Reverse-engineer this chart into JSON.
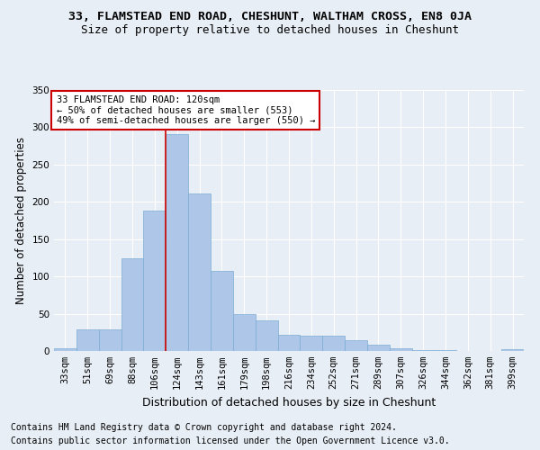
{
  "title1": "33, FLAMSTEAD END ROAD, CHESHUNT, WALTHAM CROSS, EN8 0JA",
  "title2": "Size of property relative to detached houses in Cheshunt",
  "xlabel": "Distribution of detached houses by size in Cheshunt",
  "ylabel": "Number of detached properties",
  "footer1": "Contains HM Land Registry data © Crown copyright and database right 2024.",
  "footer2": "Contains public sector information licensed under the Open Government Licence v3.0.",
  "bar_labels": [
    "33sqm",
    "51sqm",
    "69sqm",
    "88sqm",
    "106sqm",
    "124sqm",
    "143sqm",
    "161sqm",
    "179sqm",
    "198sqm",
    "216sqm",
    "234sqm",
    "252sqm",
    "271sqm",
    "289sqm",
    "307sqm",
    "326sqm",
    "344sqm",
    "362sqm",
    "381sqm",
    "399sqm"
  ],
  "bar_values": [
    4,
    29,
    29,
    124,
    188,
    291,
    211,
    107,
    50,
    41,
    22,
    20,
    20,
    14,
    9,
    4,
    1,
    1,
    0,
    0,
    3
  ],
  "bar_color": "#aec6e8",
  "bar_edge_color": "#7badd4",
  "vline_x": 4.5,
  "vline_color": "#cc0000",
  "annotation_text": "33 FLAMSTEAD END ROAD: 120sqm\n← 50% of detached houses are smaller (553)\n49% of semi-detached houses are larger (550) →",
  "box_color": "#ffffff",
  "box_edge_color": "#cc0000",
  "ylim": [
    0,
    350
  ],
  "yticks": [
    0,
    50,
    100,
    150,
    200,
    250,
    300,
    350
  ],
  "background_color": "#e8eef5",
  "plot_bg_color": "#e8eef5",
  "grid_color": "#ffffff",
  "title1_fontsize": 9.5,
  "title2_fontsize": 9,
  "xlabel_fontsize": 9,
  "ylabel_fontsize": 8.5,
  "tick_fontsize": 7.5,
  "annotation_fontsize": 7.5,
  "footer_fontsize": 7
}
